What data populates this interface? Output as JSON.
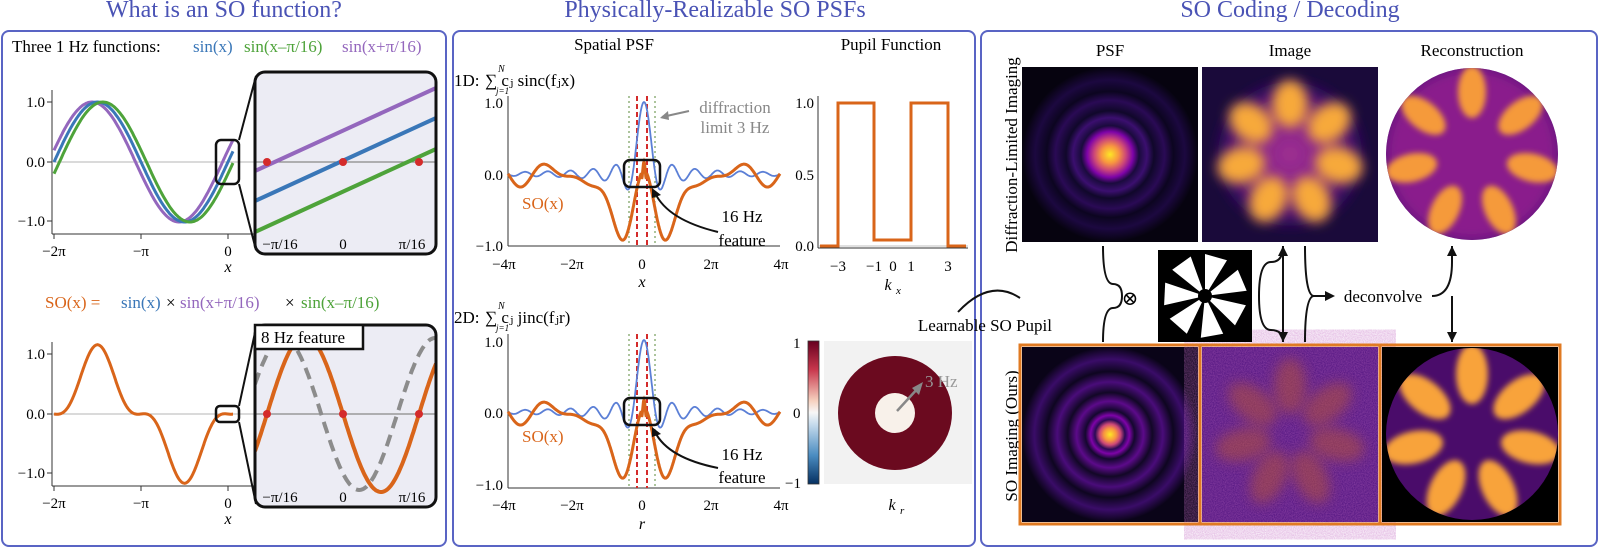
{
  "panels": {
    "left_title": "What is an SO function?",
    "middle_title": "Physically-Realizable SO PSFs",
    "right_title": "SO Coding / Decoding"
  },
  "left": {
    "top_caption": "Three 1 Hz functions:",
    "legend": [
      "sin(x)",
      "sin(x–π/16)",
      "sin(x+π/16)"
    ],
    "yticks": [
      "1.0",
      "0.0",
      "−1.0"
    ],
    "xticks": [
      "−2π",
      "−π",
      "0"
    ],
    "xlabel": "x",
    "inset_ticks": [
      "−π/16",
      "0",
      "π/16"
    ],
    "so_eq": {
      "lhs": "SO(x) =",
      "t1": "sin(x)",
      "t2": "sin(x+π/16)",
      "t3": "sin(x–π/16)",
      "times": "×"
    },
    "inset2_label": "8 Hz feature"
  },
  "middle": {
    "col1_header": "Spatial PSF",
    "col2_header": "Pupil Function",
    "eq1_prefix": "1D:",
    "eq1": "∑ cⱼ sinc(fⱼx)",
    "eq2_prefix": "2D:",
    "eq2": "∑ cⱼ jinc(fⱼr)",
    "sum_sup": "N",
    "sum_sub": "j=1",
    "psf_yticks": [
      "1.0",
      "0.0",
      "−1.0"
    ],
    "psf_xticks": [
      "−4π",
      "−2π",
      "0",
      "2π",
      "4π"
    ],
    "xlabel1": "x",
    "xlabel2": "r",
    "so_label": "SO(x)",
    "annot_diffraction": [
      "diffraction",
      "limit 3 Hz"
    ],
    "annot_feature": [
      "16 Hz",
      "feature"
    ],
    "pupil_yticks": [
      "1.0",
      "0.5",
      "0.0"
    ],
    "pupil_xticks": [
      "−3",
      "−1",
      "0",
      "1",
      "3"
    ],
    "pupil_xlabel": "k",
    "pupil_xlabel_sub": "x",
    "cbar_ticks": [
      "1",
      "0",
      "−1"
    ],
    "pupil2_label": "3 Hz",
    "pupil2_xlabel": "k",
    "pupil2_xlabel_sub": "r"
  },
  "right": {
    "col_headers": [
      "PSF",
      "Image",
      "Reconstruction"
    ],
    "row1_label": "Diffraction-Limited Imaging",
    "row2_label": "SO Imaging (Ours)",
    "pupil_label": "Learnable SO Pupil",
    "conv_symbol": "⊗",
    "deconvolve_label": "deconvolve"
  },
  "colors": {
    "accent_blue": "#4a53b5",
    "sin_blue": "#3a77b8",
    "sin_green": "#4ea33a",
    "sin_purple": "#9467bd",
    "so_orange": "#d9651a",
    "dashed_gray": "#8c8c8c",
    "marker_red": "#d42b2b",
    "inset_bg": "#ececf4"
  }
}
